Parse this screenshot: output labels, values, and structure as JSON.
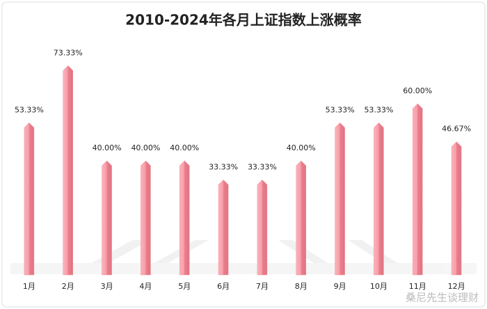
{
  "chart_data": {
    "type": "bar",
    "title": "2010-2024年各月上证指数上涨概率",
    "categories": [
      "1月",
      "2月",
      "3月",
      "4月",
      "5月",
      "6月",
      "7月",
      "8月",
      "9月",
      "10月",
      "11月",
      "12月"
    ],
    "values": [
      53.33,
      73.33,
      40.0,
      40.0,
      40.0,
      33.33,
      33.33,
      40.0,
      53.33,
      53.33,
      60.0,
      46.67
    ],
    "value_labels": [
      "53.33%",
      "73.33%",
      "40.00%",
      "40.00%",
      "40.00%",
      "33.33%",
      "33.33%",
      "40.00%",
      "53.33%",
      "53.33%",
      "60.00%",
      "46.67%"
    ],
    "color": "#f48f9b",
    "watermark": "桑尼先生谈理财"
  }
}
